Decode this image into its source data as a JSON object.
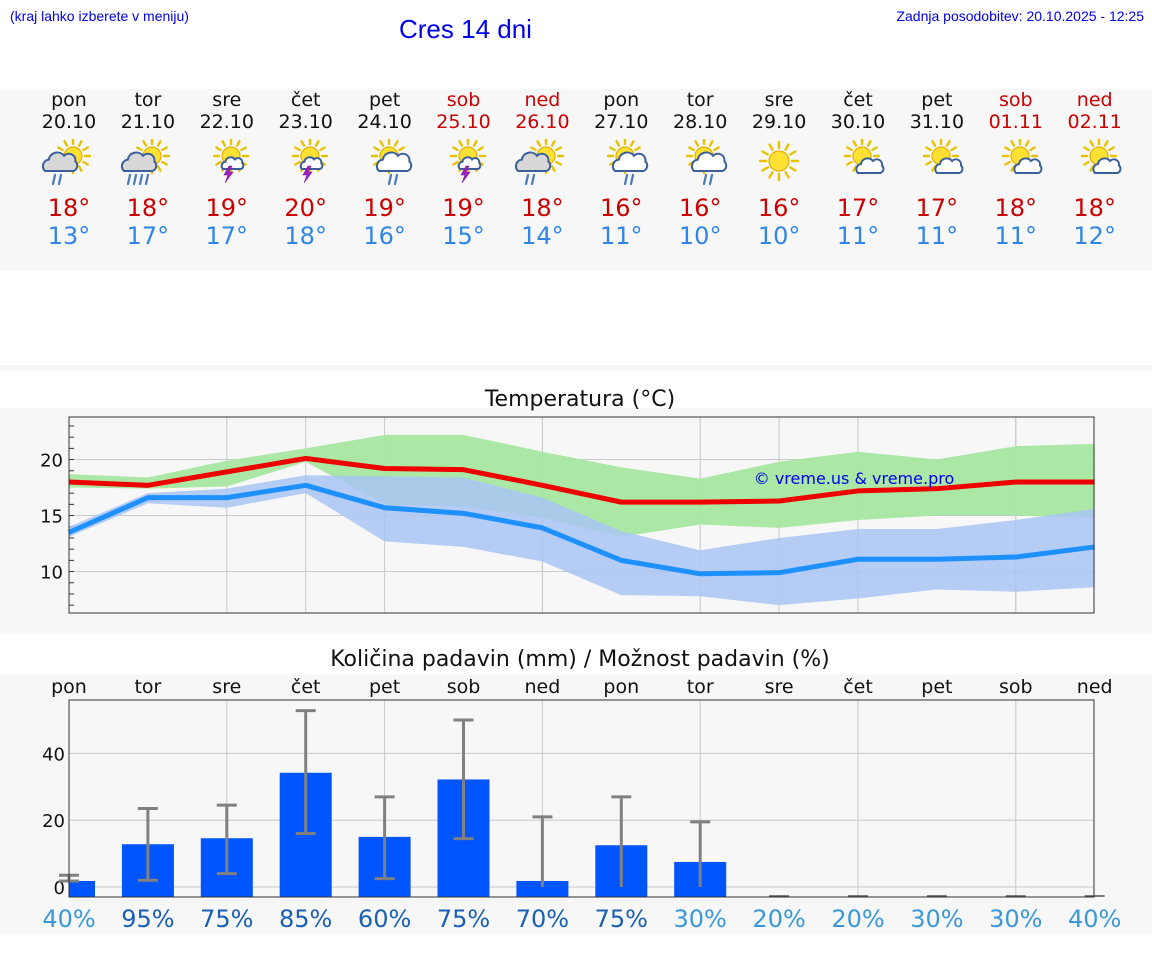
{
  "header": {
    "location_hint": "(kraj lahko izberete v meniju)",
    "title": "Cres 14 dni",
    "last_update": "Zadnja posodobitev: 20.10.2025 - 12:25"
  },
  "days": [
    {
      "name": "pon",
      "date": "20.10",
      "weekend": false,
      "icon": "sun-cloud-rain-icon",
      "tmax": "18°",
      "tmin": "13°"
    },
    {
      "name": "tor",
      "date": "21.10",
      "weekend": false,
      "icon": "sun-cloud-heavy-rain-icon",
      "tmax": "18°",
      "tmin": "17°"
    },
    {
      "name": "sre",
      "date": "22.10",
      "weekend": false,
      "icon": "sun-storm-icon",
      "tmax": "19°",
      "tmin": "17°"
    },
    {
      "name": "čet",
      "date": "23.10",
      "weekend": false,
      "icon": "sun-storm-icon",
      "tmax": "20°",
      "tmin": "18°"
    },
    {
      "name": "pet",
      "date": "24.10",
      "weekend": false,
      "icon": "sun-cloud-drizzle-icon",
      "tmax": "19°",
      "tmin": "16°"
    },
    {
      "name": "sob",
      "date": "25.10",
      "weekend": true,
      "icon": "sun-storm-icon",
      "tmax": "19°",
      "tmin": "15°"
    },
    {
      "name": "ned",
      "date": "26.10",
      "weekend": true,
      "icon": "sun-cloud-rain-icon",
      "tmax": "18°",
      "tmin": "14°"
    },
    {
      "name": "pon",
      "date": "27.10",
      "weekend": false,
      "icon": "sun-cloud-drizzle-icon",
      "tmax": "16°",
      "tmin": "11°"
    },
    {
      "name": "tor",
      "date": "28.10",
      "weekend": false,
      "icon": "sun-cloud-drizzle-icon",
      "tmax": "16°",
      "tmin": "10°"
    },
    {
      "name": "sre",
      "date": "29.10",
      "weekend": false,
      "icon": "sun-icon",
      "tmax": "16°",
      "tmin": "10°"
    },
    {
      "name": "čet",
      "date": "30.10",
      "weekend": false,
      "icon": "sun-small-cloud-icon",
      "tmax": "17°",
      "tmin": "11°"
    },
    {
      "name": "pet",
      "date": "31.10",
      "weekend": false,
      "icon": "sun-small-cloud-icon",
      "tmax": "17°",
      "tmin": "11°"
    },
    {
      "name": "sob",
      "date": "01.11",
      "weekend": true,
      "icon": "sun-small-cloud-icon",
      "tmax": "18°",
      "tmin": "11°"
    },
    {
      "name": "ned",
      "date": "02.11",
      "weekend": true,
      "icon": "sun-small-cloud-icon",
      "tmax": "18°",
      "tmin": "12°"
    }
  ],
  "colors": {
    "tmax_text": "#cc0000",
    "tmin_text": "#2f86e6",
    "tmax_line": "#ee0000",
    "tmin_line": "#1e90ff",
    "tmax_band": "#a6e6a0",
    "tmin_band": "#a9c4f5",
    "bars": "#0055ff",
    "error_bars": "#808080",
    "prob_high": "#1a5fb4",
    "prob_low": "#3a98d8"
  },
  "chart_data": [
    {
      "type": "line",
      "title": "Temperatura (°C)",
      "watermark": "© vreme.us & vreme.pro",
      "x": [
        0,
        1,
        2,
        3,
        4,
        5,
        6,
        7,
        8,
        9,
        10,
        11,
        12,
        13
      ],
      "yticks": [
        10,
        15,
        20
      ],
      "ylim": [
        6.3,
        23.8
      ],
      "series": [
        {
          "name": "max",
          "values": [
            18.0,
            17.7,
            18.9,
            20.1,
            19.2,
            19.1,
            17.7,
            16.2,
            16.2,
            16.3,
            17.2,
            17.4,
            18.0,
            18.0
          ],
          "band_low": [
            17.5,
            17.4,
            17.6,
            19.8,
            16.0,
            15.8,
            14.8,
            13.1,
            14.2,
            13.9,
            14.6,
            15.0,
            15.0,
            14.8
          ],
          "band_high": [
            18.7,
            18.4,
            19.9,
            21.0,
            22.2,
            22.2,
            20.7,
            19.3,
            18.3,
            19.8,
            20.7,
            20.0,
            21.2,
            21.4
          ]
        },
        {
          "name": "min",
          "values": [
            13.5,
            16.6,
            16.6,
            17.7,
            15.7,
            15.2,
            13.9,
            11.0,
            9.8,
            9.9,
            11.1,
            11.1,
            11.3,
            12.2
          ],
          "band_low": [
            13.1,
            16.1,
            15.7,
            17.0,
            12.7,
            12.2,
            10.9,
            7.9,
            7.8,
            7.0,
            7.6,
            8.4,
            8.2,
            8.6
          ],
          "band_high": [
            14.0,
            17.0,
            17.4,
            18.6,
            18.5,
            18.4,
            16.6,
            13.6,
            11.9,
            13.0,
            13.8,
            13.8,
            14.6,
            15.6
          ]
        }
      ]
    },
    {
      "type": "bar",
      "title": "Količina padavin (mm) / Možnost padavin (%)",
      "categories": [
        "pon",
        "tor",
        "sre",
        "čet",
        "pet",
        "sob",
        "ned",
        "pon",
        "tor",
        "sre",
        "čet",
        "pet",
        "sob",
        "ned"
      ],
      "values": [
        1.8,
        12.8,
        14.6,
        34.2,
        15.0,
        32.2,
        1.8,
        12.5,
        7.5,
        0,
        0,
        0,
        0,
        0
      ],
      "error_low": [
        1.8,
        2.0,
        4.0,
        16.0,
        2.5,
        14.5,
        0,
        0,
        0,
        0,
        0,
        0,
        0,
        0
      ],
      "error_high": [
        3.5,
        23.5,
        24.5,
        52.8,
        27.0,
        50.0,
        21.0,
        27.0,
        19.5,
        0,
        0,
        0,
        0,
        0
      ],
      "probability": [
        "40%",
        "95%",
        "75%",
        "85%",
        "60%",
        "75%",
        "70%",
        "75%",
        "30%",
        "20%",
        "20%",
        "30%",
        "30%",
        "40%"
      ],
      "yticks": [
        0,
        20,
        40
      ],
      "ylim": [
        -3,
        56
      ]
    }
  ]
}
